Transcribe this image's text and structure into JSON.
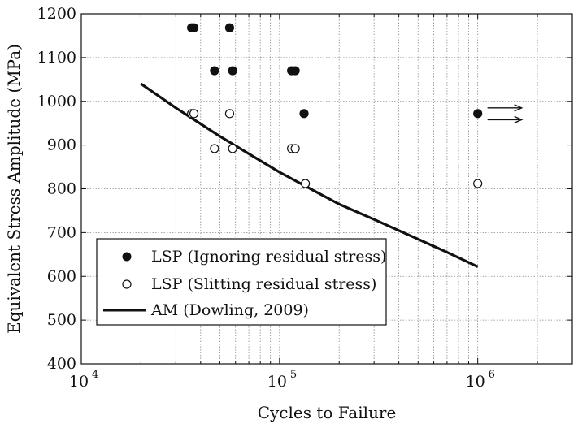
{
  "chart_data": {
    "type": "scatter",
    "title": "",
    "xlabel": "Cycles to Failure",
    "ylabel": "Equivalent Stress Amplitude (MPa)",
    "x_scale": "log",
    "xlim": [
      10000,
      3000000
    ],
    "ylim": [
      400,
      1200
    ],
    "grid": true,
    "x_ticks": [
      {
        "value": 10000,
        "base": "10",
        "exp": "4"
      },
      {
        "value": 100000,
        "base": "10",
        "exp": "5"
      },
      {
        "value": 1000000,
        "base": "10",
        "exp": "6"
      }
    ],
    "y_ticks": [
      400,
      500,
      600,
      700,
      800,
      900,
      1000,
      1100,
      1200
    ],
    "legend_position": "bottom-left",
    "series": [
      {
        "name": "LSP (Ignoring residual stress)",
        "marker": "filled-circle",
        "color": "#111111",
        "points": [
          {
            "x": 36000,
            "y": 1168
          },
          {
            "x": 37000,
            "y": 1168
          },
          {
            "x": 56000,
            "y": 1168
          },
          {
            "x": 47000,
            "y": 1070
          },
          {
            "x": 58000,
            "y": 1070
          },
          {
            "x": 115000,
            "y": 1070
          },
          {
            "x": 120000,
            "y": 1070
          },
          {
            "x": 133000,
            "y": 972
          },
          {
            "x": 1000000,
            "y": 972
          }
        ]
      },
      {
        "name": "LSP (Slitting residual stress)",
        "marker": "open-circle",
        "color": "#111111",
        "points": [
          {
            "x": 36000,
            "y": 972
          },
          {
            "x": 37000,
            "y": 972
          },
          {
            "x": 56000,
            "y": 972
          },
          {
            "x": 47000,
            "y": 892
          },
          {
            "x": 58000,
            "y": 892
          },
          {
            "x": 115000,
            "y": 892
          },
          {
            "x": 120000,
            "y": 892
          },
          {
            "x": 135000,
            "y": 812
          },
          {
            "x": 1000000,
            "y": 812
          }
        ]
      },
      {
        "name": "AM (Dowling, 2009)",
        "marker": "line",
        "color": "#111111",
        "points": [
          {
            "x": 20000,
            "y": 1040
          },
          {
            "x": 30000,
            "y": 985
          },
          {
            "x": 50000,
            "y": 920
          },
          {
            "x": 70000,
            "y": 880
          },
          {
            "x": 100000,
            "y": 838
          },
          {
            "x": 150000,
            "y": 795
          },
          {
            "x": 200000,
            "y": 765
          },
          {
            "x": 300000,
            "y": 730
          },
          {
            "x": 500000,
            "y": 685
          },
          {
            "x": 700000,
            "y": 655
          },
          {
            "x": 1000000,
            "y": 622
          }
        ]
      }
    ],
    "annotations": [
      {
        "type": "runout-arrow",
        "x": 1000000,
        "y": 985
      },
      {
        "type": "runout-arrow",
        "x": 1000000,
        "y": 958
      }
    ]
  }
}
